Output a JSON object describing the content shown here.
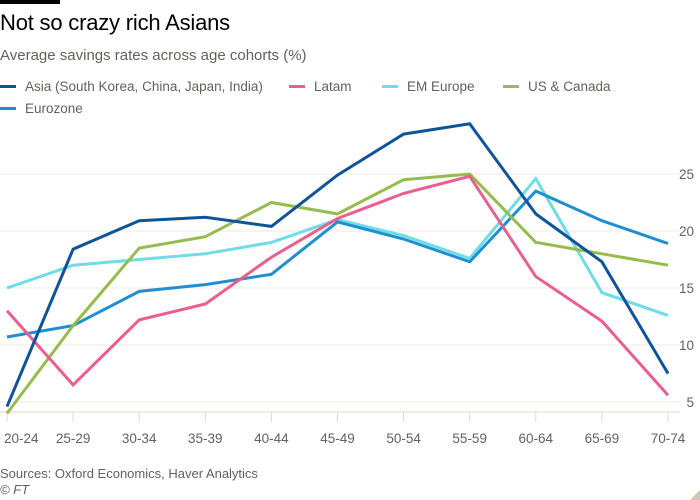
{
  "chart_data": {
    "type": "line",
    "title": "Not so crazy rich Asians",
    "subtitle": "Average savings rates across age cohorts (%)",
    "xlabel": "",
    "ylabel": "",
    "categories": [
      "20-24",
      "25-29",
      "30-34",
      "35-39",
      "40-44",
      "45-49",
      "50-54",
      "55-59",
      "60-64",
      "65-69",
      "70-74"
    ],
    "ylim": [
      4,
      30
    ],
    "yticks": [
      5,
      10,
      15,
      20,
      25
    ],
    "grid": true,
    "y_axis_side": "right",
    "legend_position": "top-left",
    "series": [
      {
        "name": "Asia (South Korea, China, Japan, India)",
        "color": "#0f5499",
        "values": [
          4.6,
          18.4,
          20.9,
          21.2,
          20.4,
          24.9,
          28.5,
          29.4,
          21.5,
          17.3,
          7.5
        ]
      },
      {
        "name": "Latam",
        "color": "#eb5e8d",
        "values": [
          13.0,
          6.5,
          12.2,
          13.6,
          17.7,
          21.1,
          23.3,
          24.8,
          16.0,
          12.1,
          5.6
        ]
      },
      {
        "name": "EM Europe",
        "color": "#70dce6",
        "values": [
          15.0,
          17.0,
          17.5,
          18.0,
          19.0,
          21.0,
          19.6,
          17.6,
          24.6,
          14.6,
          12.6
        ]
      },
      {
        "name": "US & Canada",
        "color": "#96bc4e",
        "values": [
          4.0,
          11.7,
          18.5,
          19.5,
          22.5,
          21.5,
          24.5,
          25.0,
          19.0,
          18.0,
          17.0
        ]
      },
      {
        "name": "Eurozone",
        "color": "#1f8fd0",
        "values": [
          10.7,
          11.7,
          14.7,
          15.3,
          16.2,
          20.8,
          19.3,
          17.3,
          23.5,
          20.9,
          18.9
        ]
      }
    ]
  },
  "footer": {
    "source": "Sources: Oxford Economics, Haver Analytics",
    "copyright": "© FT"
  }
}
